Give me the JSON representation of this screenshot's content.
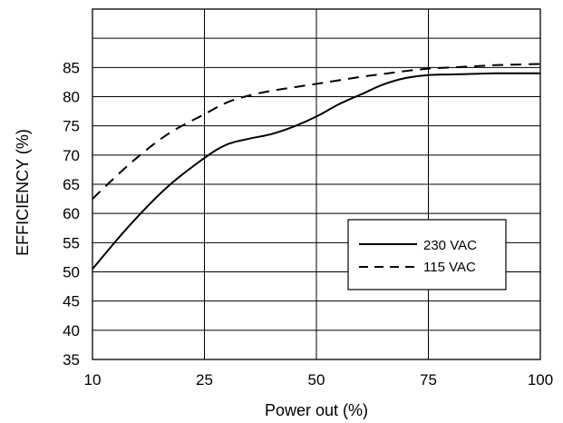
{
  "chart_data": {
    "type": "line",
    "title": "",
    "xlabel": "Power out (%)",
    "ylabel": "EFFICIENCY (%)",
    "xlim": [
      10,
      100
    ],
    "ylim": [
      35,
      95
    ],
    "x_ticks": [
      10,
      25,
      50,
      75,
      100
    ],
    "y_ticks": [
      35,
      40,
      45,
      50,
      55,
      60,
      65,
      70,
      75,
      80,
      85
    ],
    "grid": true,
    "legend_position": "center-right",
    "series": [
      {
        "name": "230 VAC",
        "style": "solid",
        "color": "#000000",
        "x": [
          10,
          15,
          20,
          25,
          30,
          35,
          40,
          45,
          50,
          55,
          60,
          65,
          70,
          75,
          80,
          85,
          90,
          95,
          100
        ],
        "y": [
          50.5,
          58,
          64.5,
          69.5,
          71.8,
          72.8,
          73.6,
          74.9,
          76.6,
          78.7,
          80.4,
          82.1,
          83.2,
          83.7,
          83.8,
          83.9,
          84,
          84,
          84
        ]
      },
      {
        "name": "115 VAC",
        "style": "dashed",
        "color": "#000000",
        "x": [
          10,
          15,
          20,
          25,
          30,
          35,
          40,
          45,
          50,
          55,
          60,
          65,
          70,
          75,
          80,
          85,
          90,
          95,
          100
        ],
        "y": [
          62.5,
          68.5,
          73.5,
          77,
          79,
          80.2,
          81,
          81.6,
          82.2,
          82.8,
          83.4,
          83.9,
          84.4,
          84.8,
          85,
          85.2,
          85.4,
          85.5,
          85.6
        ]
      }
    ]
  }
}
